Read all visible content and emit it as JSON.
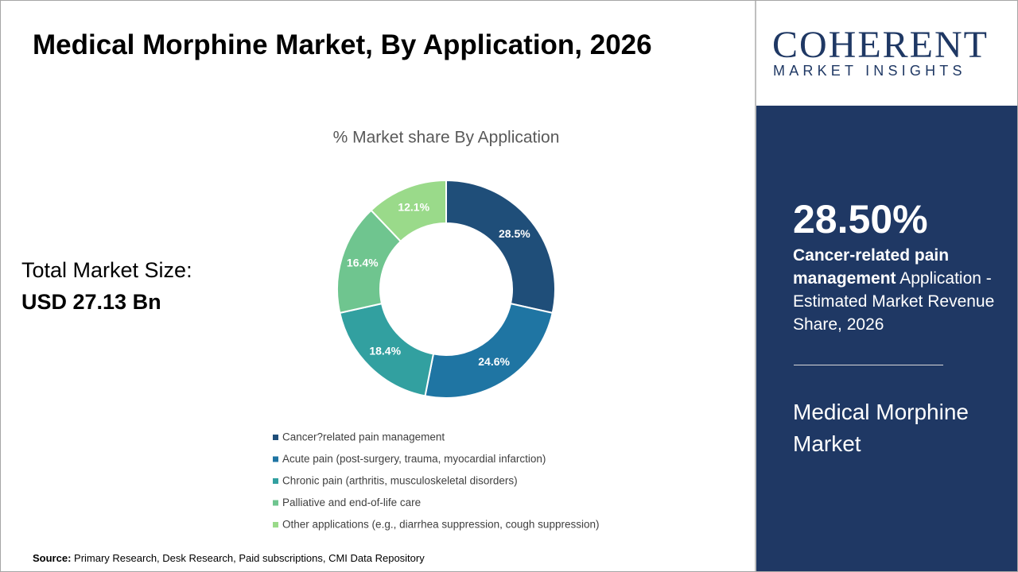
{
  "header": {
    "title": "Medical Morphine Market, By Application, 2026"
  },
  "summary": {
    "label": "Total Market Size:",
    "value": "USD 27.13 Bn"
  },
  "chart_data": {
    "type": "pie",
    "title": "% Market share By Application",
    "donut": true,
    "categories": [
      "Cancer?related pain management",
      "Acute pain (post-surgery, trauma, myocardial infarction)",
      "Chronic pain (arthritis, musculoskeletal disorders)",
      "Palliative and end-of-life care",
      "Other applications (e.g., diarrhea suppression, cough suppression)"
    ],
    "values": [
      28.5,
      24.6,
      18.4,
      16.4,
      12.1
    ],
    "value_labels": [
      "28.5%",
      "24.6%",
      "18.4%",
      "16.4%",
      "12.1%"
    ],
    "colors": [
      "#1f4e79",
      "#1f75a3",
      "#32a0a0",
      "#6fc58f",
      "#9ada8a"
    ]
  },
  "logo": {
    "name": "COHERENT",
    "tagline": "MARKET INSIGHTS"
  },
  "side_panel": {
    "highlight": "28.50%",
    "description_bold": "Cancer-related pain management",
    "description": " Application - Estimated Market Revenue Share, 2026",
    "market": "Medical Morphine Market"
  },
  "footer": {
    "source_label": "Source:",
    "source": " Primary Research, Desk Research, Paid subscriptions, CMI Data Repository"
  }
}
